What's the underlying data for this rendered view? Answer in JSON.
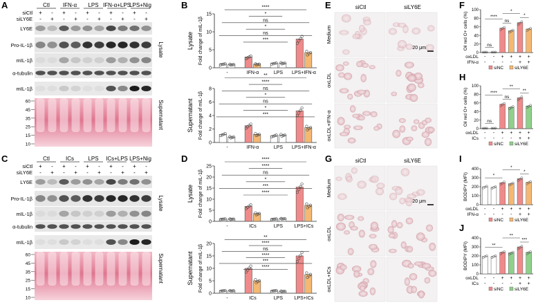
{
  "panel_letters": {
    "A": "A",
    "B": "B",
    "C": "C",
    "D": "D",
    "E": "E",
    "F": "F",
    "G": "G",
    "H": "H",
    "I": "I",
    "J": "J"
  },
  "blot_A": {
    "groups": [
      "Ctl",
      "IFN-α",
      "LPS",
      "IFN-α+LPS",
      "LPS+Nig"
    ],
    "row_labels": [
      "siCtl",
      "siLY6E"
    ],
    "plus": "+",
    "minus": "-",
    "bands": [
      "LY6E",
      "Pro-IL-1β",
      "mIL-1β",
      "α-tubulin"
    ],
    "sup_band": "mIL-1β",
    "sections": [
      "Lysate",
      "Supernatant"
    ],
    "ladder": [
      "60",
      "45",
      "35",
      "25",
      "15",
      "10"
    ]
  },
  "blot_C": {
    "groups": [
      "Ctl",
      "ICs",
      "LPS",
      "ICs+LPS",
      "LPS+Nig"
    ],
    "row_labels": [
      "siCtl",
      "siLY6E"
    ],
    "plus": "+",
    "minus": "-",
    "bands": [
      "LY6E",
      "Pro-IL-1β",
      "mIL-1β",
      "α-tubulin"
    ],
    "sup_band": "mIL-1β",
    "sections": [
      "Lysate",
      "Supernatant"
    ],
    "ladder": [
      "60",
      "45",
      "35",
      "25",
      "15",
      "10"
    ]
  },
  "micro_E": {
    "col_labels": [
      "siCtl",
      "siLY6E"
    ],
    "row_labels": [
      "Medium",
      "oxLDL",
      "oxLDL+IFN-α"
    ],
    "scale": "20 μm"
  },
  "micro_G": {
    "col_labels": [
      "siCtl",
      "siLY6E"
    ],
    "row_labels": [
      "Medium",
      "oxLDL",
      "oxLDL+ICs"
    ],
    "scale": "20 μm"
  },
  "colors": {
    "red": "#f08a8a",
    "orange": "#f5b872",
    "green": "#8fd18a",
    "white": "#ffffff",
    "blot_pink": "#d9506c"
  },
  "chart_data": [
    {
      "panel": "B-top",
      "type": "bar",
      "section": "Lysate",
      "ylabel": "Fold change of mIL-1β",
      "ylim": [
        0,
        15
      ],
      "ticks": [
        "0",
        "5",
        "10",
        "15"
      ],
      "categories": [
        "-",
        "IFN-α",
        "LPS",
        "LPS+IFN-α"
      ],
      "series": [
        {
          "values": [
            1.0,
            3.0,
            1.2,
            8.0
          ]
        },
        {
          "values": [
            0.9,
            1.0,
            1.3,
            4.2
          ]
        }
      ],
      "significance": [
        "****",
        "*",
        "ns",
        "*",
        "ns",
        "***"
      ]
    },
    {
      "panel": "B-bottom",
      "type": "bar",
      "section": "Supernatant",
      "ylabel": "Fold change of mIL-1β",
      "ylim": [
        0,
        8
      ],
      "ticks": [
        "0",
        "2",
        "4",
        "6",
        "8"
      ],
      "categories": [
        "-",
        "IFN-α",
        "LPS",
        "LPS+IFN-α"
      ],
      "series": [
        {
          "values": [
            1.2,
            2.5,
            1.0,
            4.7
          ]
        },
        {
          "values": [
            0.8,
            1.2,
            1.1,
            2.2
          ]
        }
      ],
      "significance": [
        "**",
        "****",
        "ns",
        "*",
        "ns",
        "*",
        "***"
      ]
    },
    {
      "panel": "D-top",
      "type": "bar",
      "section": "Lysate",
      "ylabel": "Fold change of mIL-1β",
      "ylim": [
        0,
        25
      ],
      "ticks": [
        "0",
        "5",
        "10",
        "15",
        "20",
        "25"
      ],
      "categories": [
        "-",
        "ICs",
        "LPS",
        "LPS+ICs"
      ],
      "series": [
        {
          "values": [
            1.0,
            6.8,
            1.0,
            15.5
          ]
        },
        {
          "values": [
            1.0,
            3.5,
            1.2,
            7.2
          ]
        }
      ],
      "significance": [
        "****",
        "****",
        "ns",
        "*",
        "***",
        "****"
      ]
    },
    {
      "panel": "D-bottom",
      "type": "bar",
      "section": "Supernatant",
      "ylabel": "Fold change of mIL-1β",
      "ylim": [
        0,
        20
      ],
      "ticks": [
        "0",
        "5",
        "10",
        "15",
        "20"
      ],
      "categories": [
        "-",
        "ICs",
        "LPS",
        "LPS+ICs"
      ],
      "series": [
        {
          "values": [
            1.0,
            10.0,
            1.0,
            15.0
          ]
        },
        {
          "values": [
            1.0,
            5.0,
            0.8,
            7.5
          ]
        }
      ],
      "significance": [
        "**",
        "****",
        "ns",
        "****",
        "***",
        "****"
      ]
    },
    {
      "panel": "F",
      "type": "bar",
      "ylabel": "Oil red O+ cells (%)",
      "ylim": [
        0,
        100
      ],
      "ticks": [
        "0",
        "20",
        "40",
        "60",
        "80",
        "100"
      ],
      "row1": "oxLDL",
      "row2": "IFN-α",
      "row1_signs": [
        "-",
        "-",
        "+",
        "+",
        "+",
        "+"
      ],
      "row2_signs": [
        "-",
        "-",
        "-",
        "-",
        "+",
        "+"
      ],
      "legend": [
        "siNC",
        "siLY6E"
      ],
      "values": [
        1,
        1,
        57,
        51,
        70,
        55
      ],
      "significance": [
        "ns",
        "****",
        "ns",
        "*",
        "*"
      ]
    },
    {
      "panel": "H",
      "type": "bar",
      "ylabel": "Oil red O+ cells (%)",
      "ylim": [
        0,
        100
      ],
      "ticks": [
        "0",
        "20",
        "40",
        "60",
        "80",
        "100"
      ],
      "row1": "oxLDL",
      "row2": "ICs",
      "row1_signs": [
        "-",
        "-",
        "+",
        "+",
        "+",
        "+"
      ],
      "row2_signs": [
        "-",
        "-",
        "-",
        "-",
        "+",
        "+"
      ],
      "legend": [
        "siNC",
        "siLY6E"
      ],
      "values": [
        1,
        1,
        57,
        50,
        72,
        53
      ],
      "significance": [
        "ns",
        "****",
        "ns",
        "**",
        "**"
      ]
    },
    {
      "panel": "I",
      "type": "bar",
      "ylabel": "BODIPY (MFI)",
      "ylim": [
        0,
        400
      ],
      "ticks": [
        "0",
        "100",
        "200",
        "300",
        "400"
      ],
      "row1": "oxLDL",
      "row2": "IFN-α",
      "row1_signs": [
        "-",
        "-",
        "+",
        "+",
        "+",
        "+"
      ],
      "row2_signs": [
        "-",
        "-",
        "-",
        "-",
        "+",
        "+"
      ],
      "legend": [
        "siNC",
        "siLY6E"
      ],
      "values": [
        200,
        195,
        245,
        235,
        290,
        250
      ],
      "significance": [
        "*",
        "*",
        "*"
      ]
    },
    {
      "panel": "J",
      "type": "bar",
      "ylabel": "BODIPY (MFI)",
      "ylim": [
        0,
        400
      ],
      "ticks": [
        "0",
        "100",
        "200",
        "300",
        "400"
      ],
      "row1": "oxLDL",
      "row2": "ICs",
      "row1_signs": [
        "-",
        "-",
        "+",
        "+",
        "+",
        "+"
      ],
      "row2_signs": [
        "-",
        "-",
        "-",
        "-",
        "+",
        "+"
      ],
      "legend": [
        "siNC",
        "siLY6E"
      ],
      "values": [
        195,
        195,
        240,
        235,
        300,
        240
      ],
      "significance": [
        "**",
        "**",
        "***"
      ]
    }
  ]
}
